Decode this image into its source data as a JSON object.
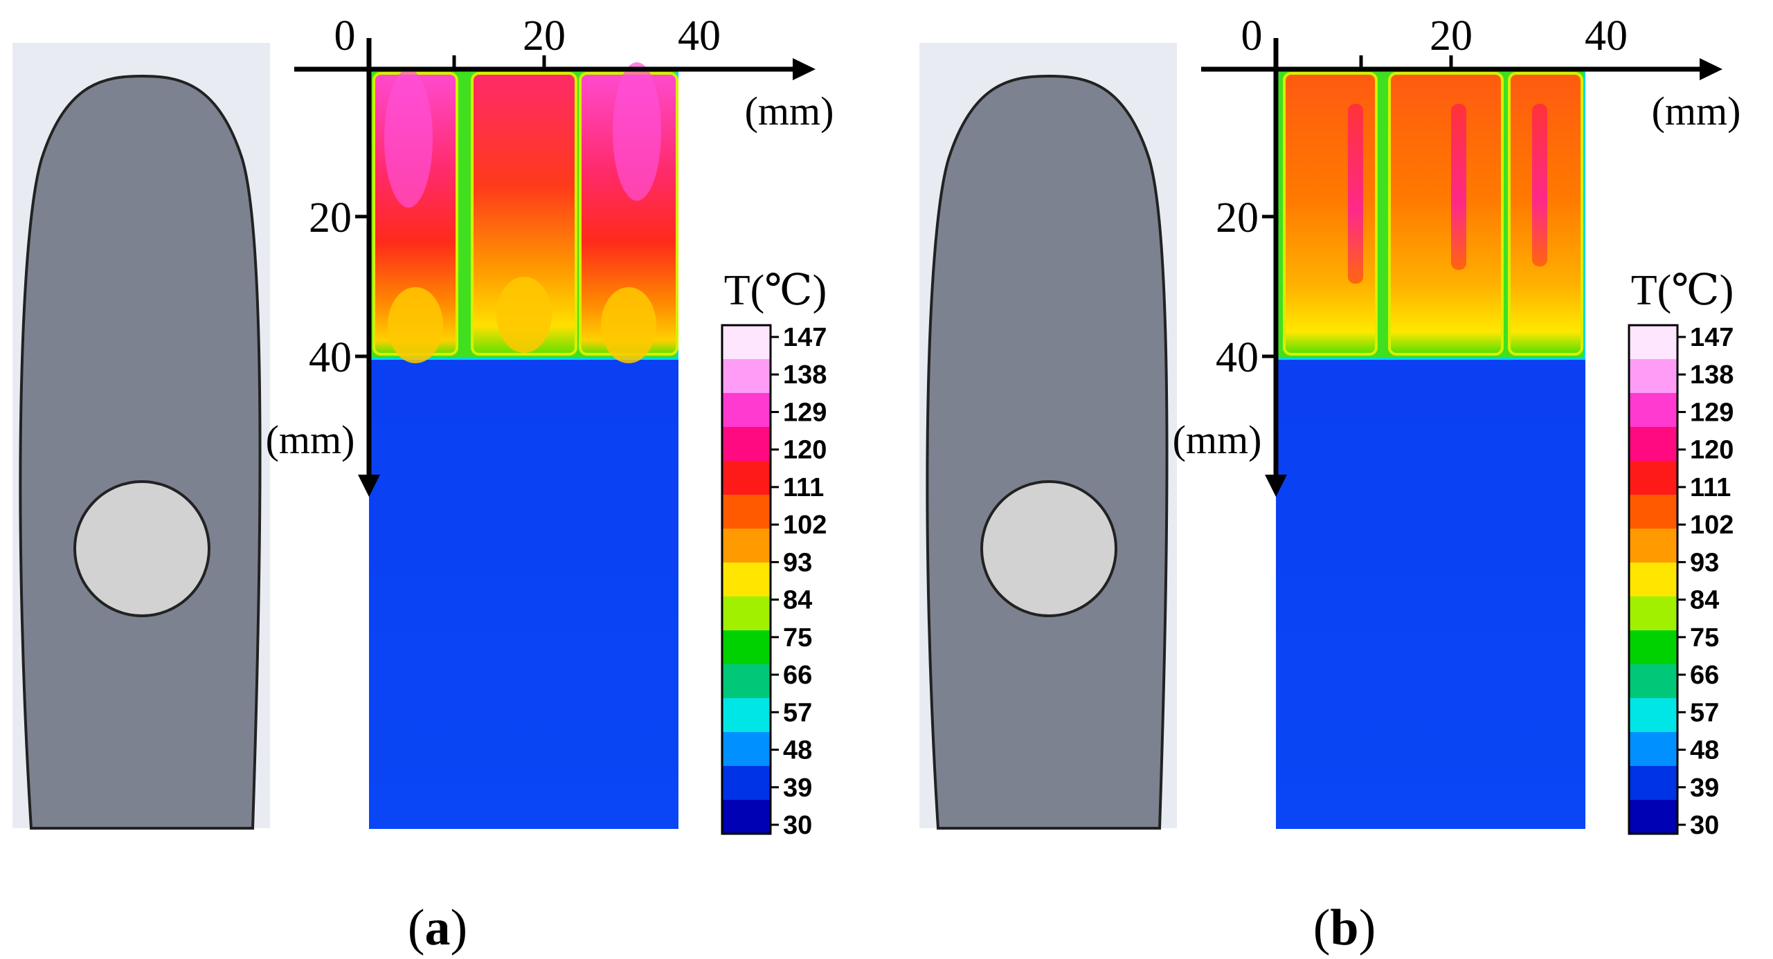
{
  "panels": [
    {
      "id": "a",
      "caption_open": "(",
      "caption_letter": "a",
      "caption_close": ")",
      "x_ticks": [
        "0",
        "20",
        "40"
      ],
      "y_ticks": [
        "20",
        "40"
      ],
      "x_unit": "(mm)",
      "y_unit": "(mm)",
      "colorbar_title": "T(℃)"
    },
    {
      "id": "b",
      "caption_open": "(",
      "caption_letter": "b",
      "caption_close": ")",
      "x_ticks": [
        "0",
        "20",
        "40"
      ],
      "y_ticks": [
        "20",
        "40"
      ],
      "x_unit": "(mm)",
      "y_unit": "(mm)",
      "colorbar_title": "T(℃)"
    }
  ],
  "colorbar": {
    "labels": [
      "147",
      "138",
      "129",
      "120",
      "111",
      "102",
      "93",
      "84",
      "75",
      "66",
      "57",
      "48",
      "39",
      "30"
    ],
    "colors": [
      "#ffe6ff",
      "#ff9cf5",
      "#ff3ad0",
      "#ff0a80",
      "#ff1a1a",
      "#ff5a00",
      "#ff9a00",
      "#ffe600",
      "#a0f000",
      "#00d200",
      "#00c878",
      "#00e6e6",
      "#0090ff",
      "#0032e6",
      "#0000b4"
    ]
  },
  "colors": {
    "background_cold": "#0a3cf0",
    "sample_body": "#7d8291",
    "sample_hole": "#d2d2d2",
    "sample_bg": "#e8ecf2"
  }
}
